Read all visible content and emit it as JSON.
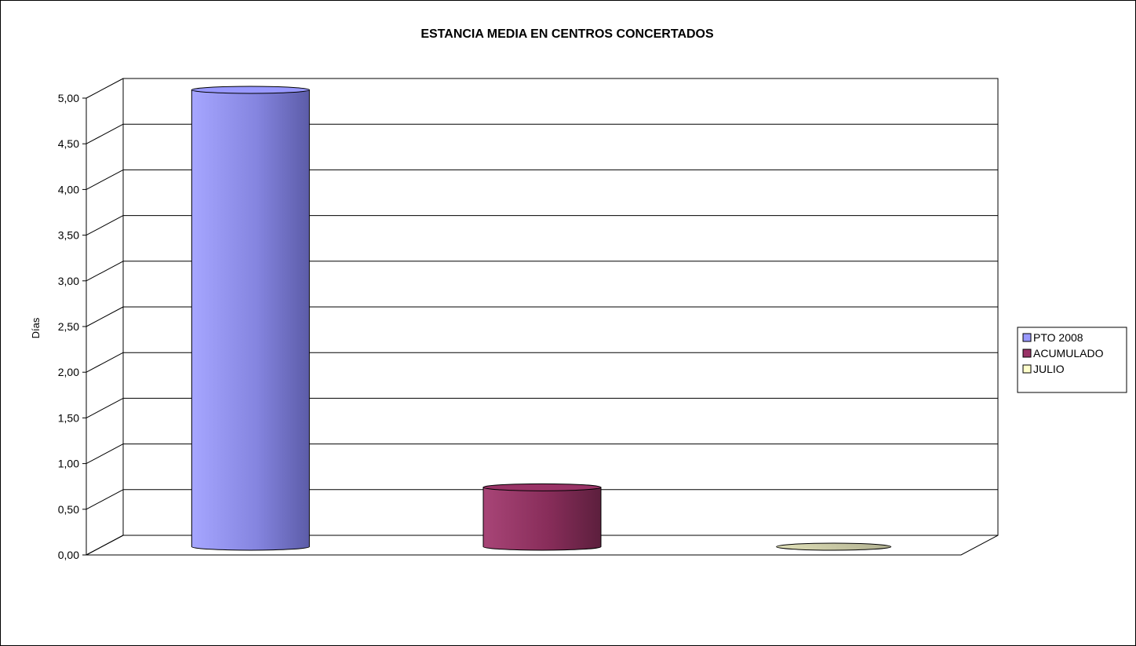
{
  "chart_data": {
    "type": "bar",
    "style": "3d-cylinder",
    "title": "ESTANCIA MEDIA EN CENTROS CONCERTADOS",
    "xlabel": "",
    "ylabel": "Días",
    "ylim": [
      0,
      5
    ],
    "yticks": [
      "0,00",
      "0,50",
      "1,00",
      "1,50",
      "2,00",
      "2,50",
      "3,00",
      "3,50",
      "4,00",
      "4,50",
      "5,00"
    ],
    "grid": true,
    "legend_position": "right",
    "series": [
      {
        "name": "PTO 2008",
        "value": 5.0,
        "color": "#9999ff"
      },
      {
        "name": "ACUMULADO",
        "value": 0.65,
        "color": "#993366"
      },
      {
        "name": "JULIO",
        "value": 0.0,
        "color": "#ffffcc"
      }
    ]
  }
}
